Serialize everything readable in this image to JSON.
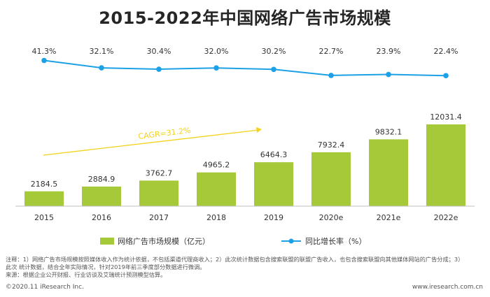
{
  "title": "2015-2022年中国网络广告市场规模",
  "chart_data": {
    "type": "bar",
    "categories": [
      "2015",
      "2016",
      "2017",
      "2018",
      "2019",
      "2020e",
      "2021e",
      "2022e"
    ],
    "series": [
      {
        "name": "网络广告市场规模（亿元）",
        "type": "bar",
        "color": "#a6c93a",
        "values": [
          2184.5,
          2884.9,
          3762.7,
          4965.2,
          6464.3,
          7932.4,
          9832.1,
          12031.4
        ],
        "labels": [
          "2184.5",
          "2884.9",
          "3762.7",
          "4965.2",
          "6464.3",
          "7932.4",
          "9832.1",
          "12031.4"
        ]
      },
      {
        "name": "同比增长率（%）",
        "type": "line",
        "color": "#1da1e6",
        "values": [
          41.3,
          32.1,
          30.4,
          32.0,
          30.2,
          22.7,
          23.9,
          22.4
        ],
        "labels": [
          "41.3%",
          "32.1%",
          "30.4%",
          "32.0%",
          "30.2%",
          "22.7%",
          "23.9%",
          "22.4%"
        ]
      }
    ],
    "annotation": {
      "text": "CAGR=31.2%",
      "color": "#f2d21b"
    },
    "grid": false,
    "legend_position": "bottom"
  },
  "notes": {
    "line1": "注释：1）网络广告市场规模按照媒体收入作为统计依据，不包括渠道代理商收入；2）此次统计数据包含搜索联盟的联盟广告收入，也包含搜索联盟向其他媒体网站的广告分成；3）",
    "line2": "此次 统计数据，结合全年实际情况，针对2019年前三季度部分数据进行微调。",
    "line3": "来源：根据企业公开财报、行业访谈及艾瑞统计预测模型估算。"
  },
  "footer": {
    "left": "©2020.11 iResearch Inc.",
    "right": "www.iresearch.com.cn"
  }
}
